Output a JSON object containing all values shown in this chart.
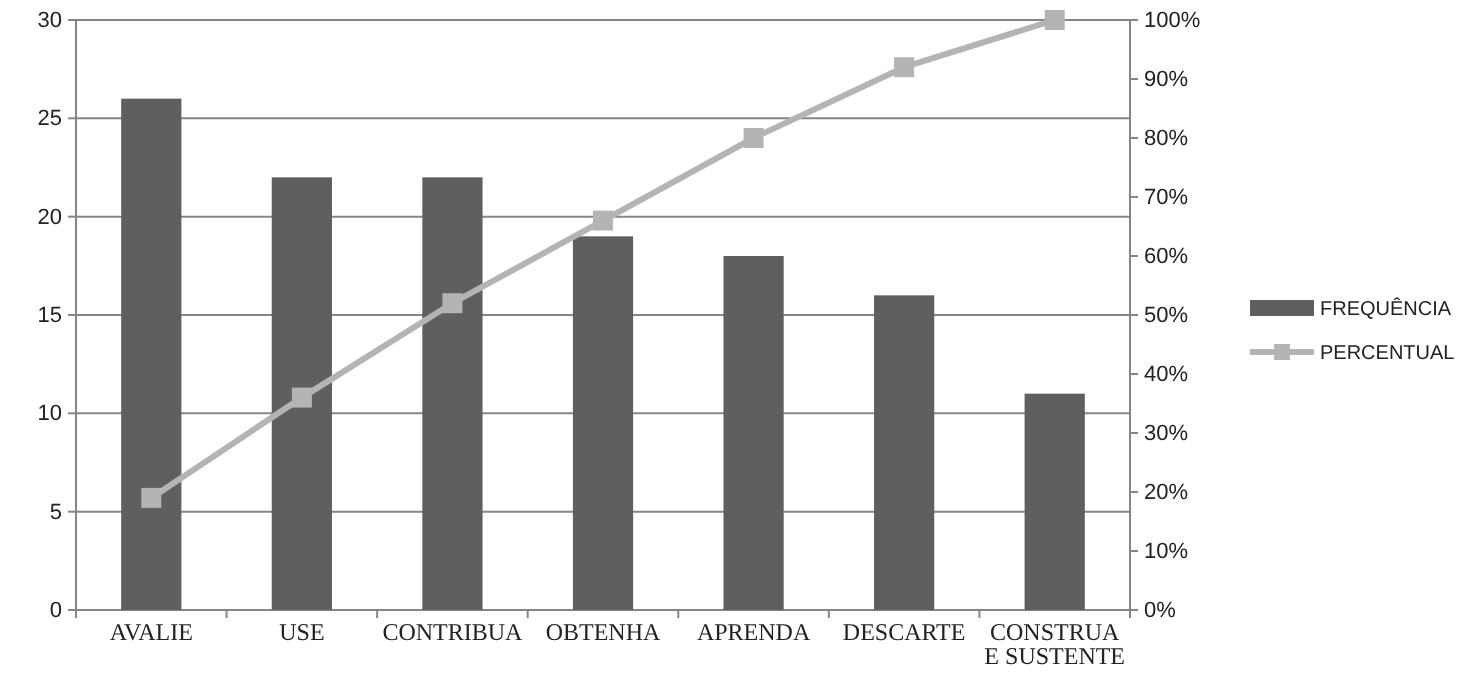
{
  "chart_data": {
    "type": "bar",
    "categories": [
      "AVALIE",
      "USE",
      "CONTRIBUA",
      "OBTENHA",
      "APRENDA",
      "DESCARTE",
      "CONSTRUA E SUSTENTE"
    ],
    "series": [
      {
        "name": "FREQUÊNCIA",
        "color": "#5f5f5f",
        "values": [
          26,
          22,
          22,
          19,
          18,
          16,
          11
        ]
      },
      {
        "name": "PERCENTUAL",
        "type": "line",
        "axis": "y2",
        "color": "#b4b4b4",
        "marker": "square",
        "values": [
          19,
          36,
          52,
          66,
          80,
          92,
          100
        ]
      }
    ],
    "ylim": [
      0,
      30
    ],
    "yticks": [
      0,
      5,
      10,
      15,
      20,
      25,
      30
    ],
    "y2lim": [
      0,
      100
    ],
    "y2ticks": [
      {
        "value": 0,
        "label": "0%"
      },
      {
        "value": 10,
        "label": "10%"
      },
      {
        "value": 20,
        "label": "20%"
      },
      {
        "value": 30,
        "label": "30%"
      },
      {
        "value": 40,
        "label": "40%"
      },
      {
        "value": 50,
        "label": "50%"
      },
      {
        "value": 60,
        "label": "60%"
      },
      {
        "value": 70,
        "label": "70%"
      },
      {
        "value": 80,
        "label": "80%"
      },
      {
        "value": 90,
        "label": "90%"
      },
      {
        "value": 100,
        "label": "100%"
      }
    ],
    "grid": "y",
    "legend": "right"
  }
}
